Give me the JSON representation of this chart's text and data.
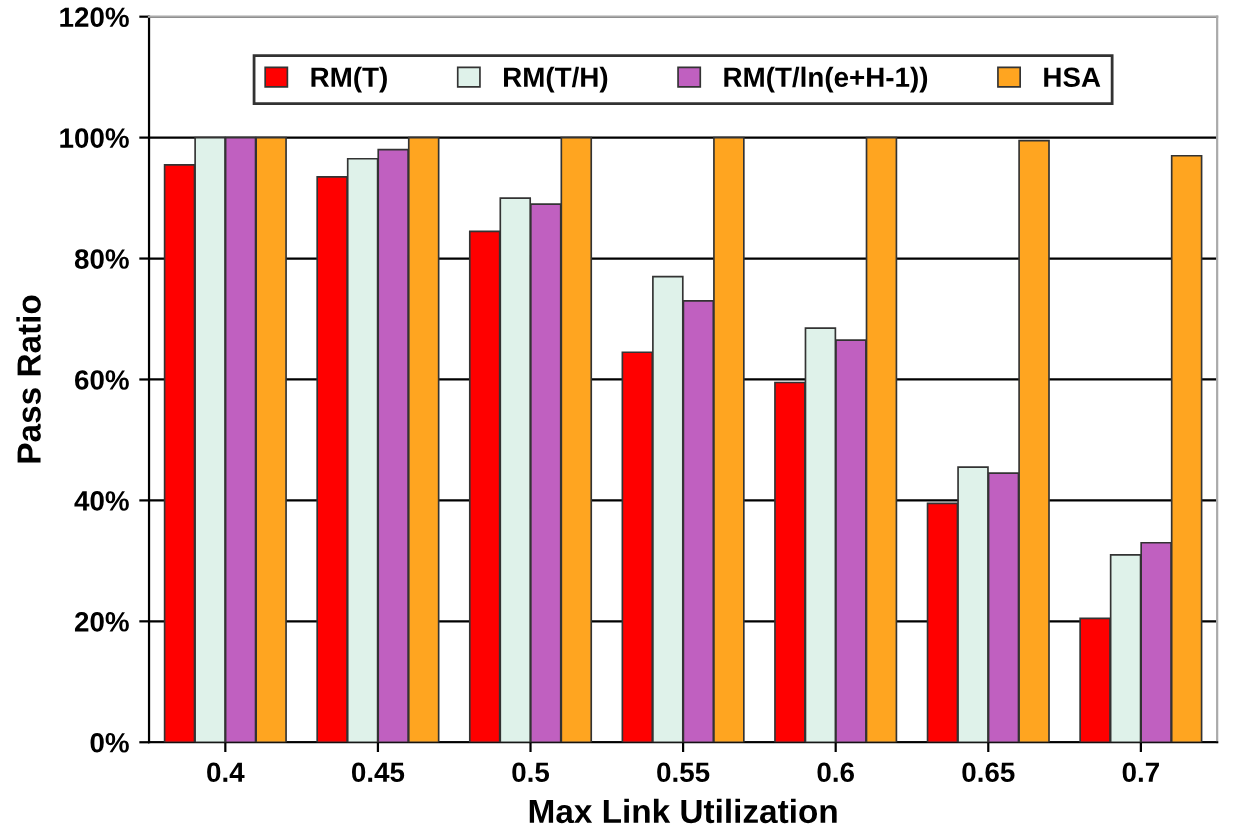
{
  "chart_data": {
    "type": "bar",
    "xlabel": "Max Link Utilization",
    "ylabel": "Pass Ratio",
    "categories": [
      "0.4",
      "0.45",
      "0.5",
      "0.55",
      "0.6",
      "0.65",
      "0.7"
    ],
    "series": [
      {
        "name": "RM(T)",
        "color": "#ff0000",
        "values": [
          95.5,
          93.5,
          84.5,
          64.5,
          59.5,
          39.5,
          20.5
        ]
      },
      {
        "name": "RM(T/H)",
        "color": "#dff2ea",
        "values": [
          100,
          96.5,
          90,
          77,
          68.5,
          45.5,
          31
        ]
      },
      {
        "name": "RM(T/ln(e+H-1))",
        "color": "#c060c0",
        "values": [
          100,
          98,
          89,
          73,
          66.5,
          44.5,
          33
        ]
      },
      {
        "name": "HSA",
        "color": "#ffa520",
        "values": [
          100,
          100,
          100,
          100,
          100,
          99.5,
          97
        ]
      }
    ],
    "ylim": [
      0,
      120
    ],
    "yticks": [
      {
        "value": 0,
        "label": "0%"
      },
      {
        "value": 20,
        "label": "20%"
      },
      {
        "value": 40,
        "label": "40%"
      },
      {
        "value": 60,
        "label": "60%"
      },
      {
        "value": 80,
        "label": "80%"
      },
      {
        "value": 100,
        "label": "100%"
      },
      {
        "value": 120,
        "label": "120%"
      }
    ],
    "grid": "y",
    "legend": "top"
  }
}
